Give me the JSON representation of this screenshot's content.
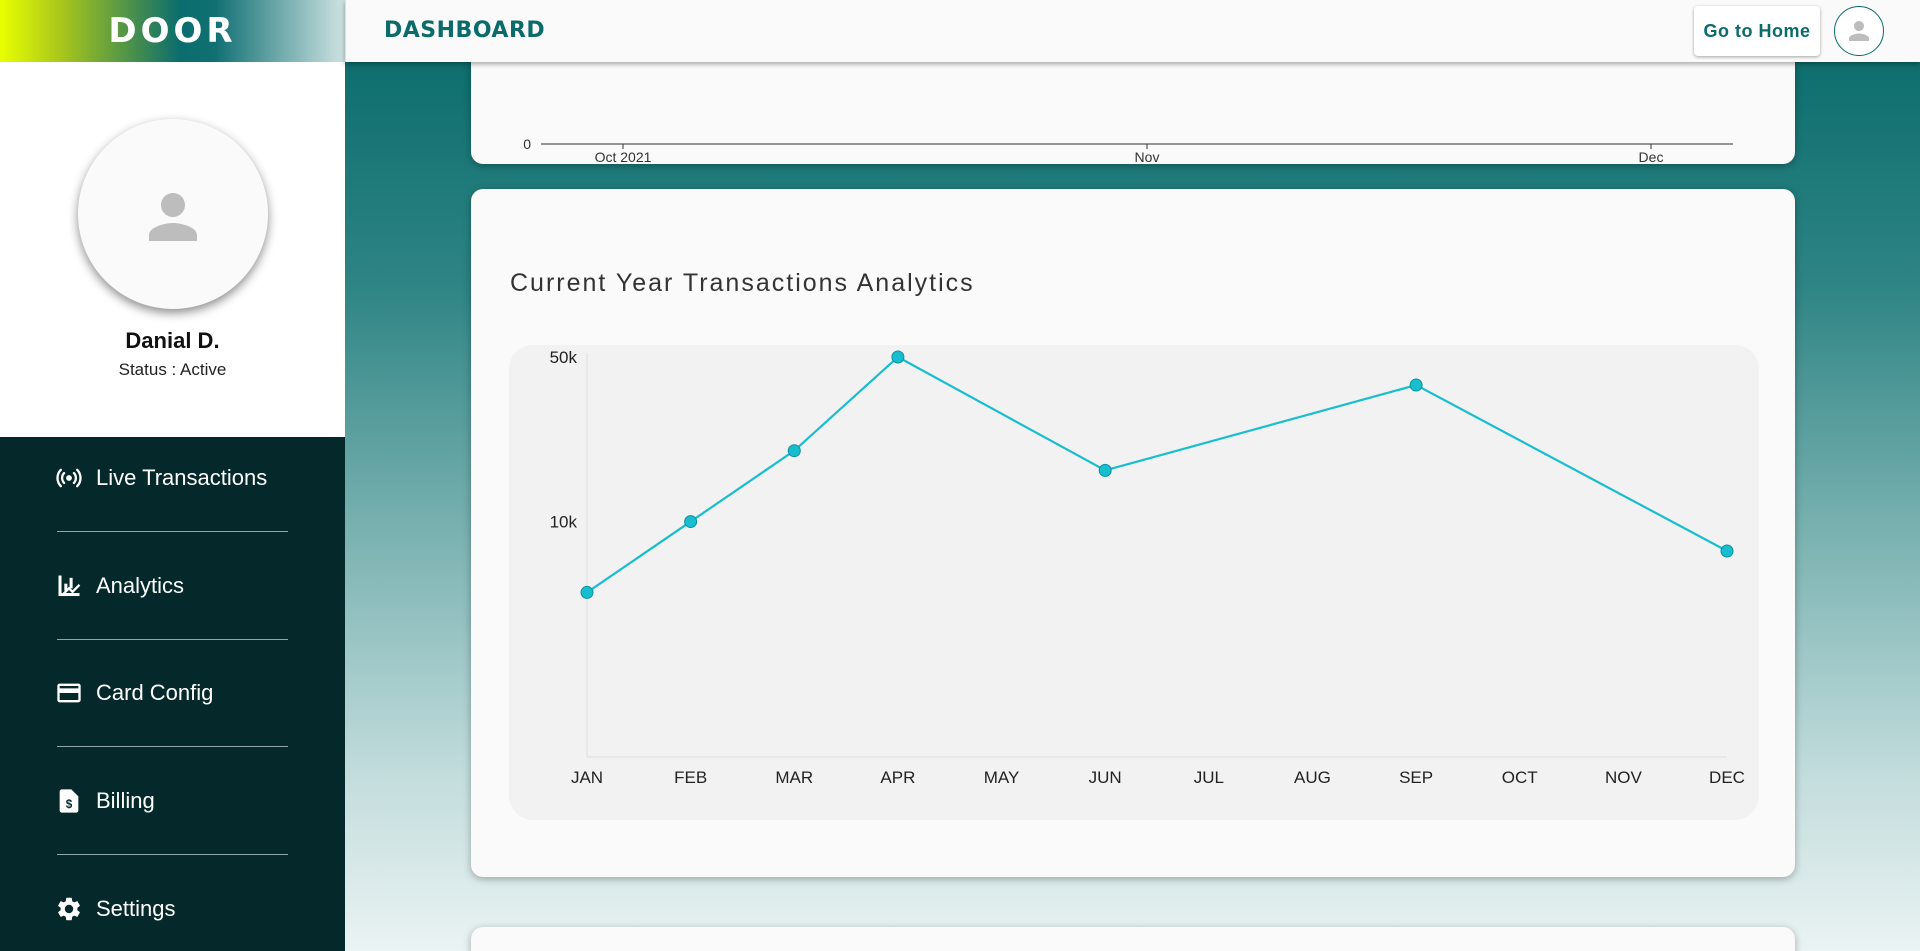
{
  "app": {
    "logo": "DOOR",
    "page_title": "DASHBOARD",
    "go_home_label": "Go to Home"
  },
  "profile": {
    "name": "Danial D.",
    "status": "Status : Active"
  },
  "nav": {
    "items": [
      {
        "label": "Live Transactions",
        "icon": "live-broadcast-icon"
      },
      {
        "label": "Analytics",
        "icon": "analytics-chart-icon"
      },
      {
        "label": "Card Config",
        "icon": "credit-card-icon"
      },
      {
        "label": "Billing",
        "icon": "billing-document-icon"
      },
      {
        "label": "Settings",
        "icon": "gear-icon"
      }
    ]
  },
  "top_chart": {
    "y_tick": "0",
    "x_ticks": [
      "Oct 2021",
      "Nov",
      "Dec"
    ]
  },
  "main_card": {
    "title": "Current Year Transactions Analytics"
  },
  "chart_data": {
    "type": "line",
    "title": "Current Year Transactions Analytics",
    "categories": [
      "JAN",
      "FEB",
      "MAR",
      "APR",
      "MAY",
      "JUN",
      "JUL",
      "AUG",
      "SEP",
      "OCT",
      "NOV",
      "DEC"
    ],
    "y_ticks": [
      "50k",
      "10k"
    ],
    "y_scale": "log",
    "ylim": [
      1000,
      50000
    ],
    "series": [
      {
        "x": [
          "JAN",
          "FEB",
          "MAR",
          "APR",
          "JUN",
          "SEP",
          "DEC"
        ],
        "values": [
          5000,
          10000,
          20000,
          50000,
          16500,
          38000,
          7500
        ]
      }
    ],
    "color": "#17becf",
    "grid": false
  },
  "colors": {
    "accent": "#0b6b6b",
    "sidebar_nav": "#05282a",
    "line": "#17becf"
  }
}
